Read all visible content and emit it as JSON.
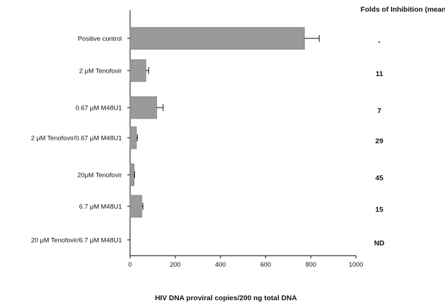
{
  "chart_data": {
    "type": "bar",
    "orientation": "horizontal",
    "categories": [
      "Positive control",
      "2 μM Tenofovir",
      "0.67 μM M48U1",
      "2 μM Tenofovir/0.67 μM M48U1",
      "20μM Tenofovir",
      "6.7 μM M48U1",
      "20 μM Tenofovir/6.7 μM M48U1"
    ],
    "values": [
      772,
      70,
      118,
      28,
      18,
      52,
      0
    ],
    "errors": [
      65,
      12,
      28,
      4,
      2,
      5,
      0
    ],
    "folds_header": "Folds of Inhibition (mean)",
    "folds": [
      "-",
      "11",
      "7",
      "29",
      "45",
      "15",
      "ND"
    ],
    "xlabel": "HIV DNA proviral copies/200 ng total DNA",
    "xlim": [
      0,
      1000
    ],
    "xticks": [
      "0",
      "200",
      "400",
      "600",
      "800",
      "1000"
    ],
    "bar_color": "#9a9a9a",
    "grid": false
  }
}
